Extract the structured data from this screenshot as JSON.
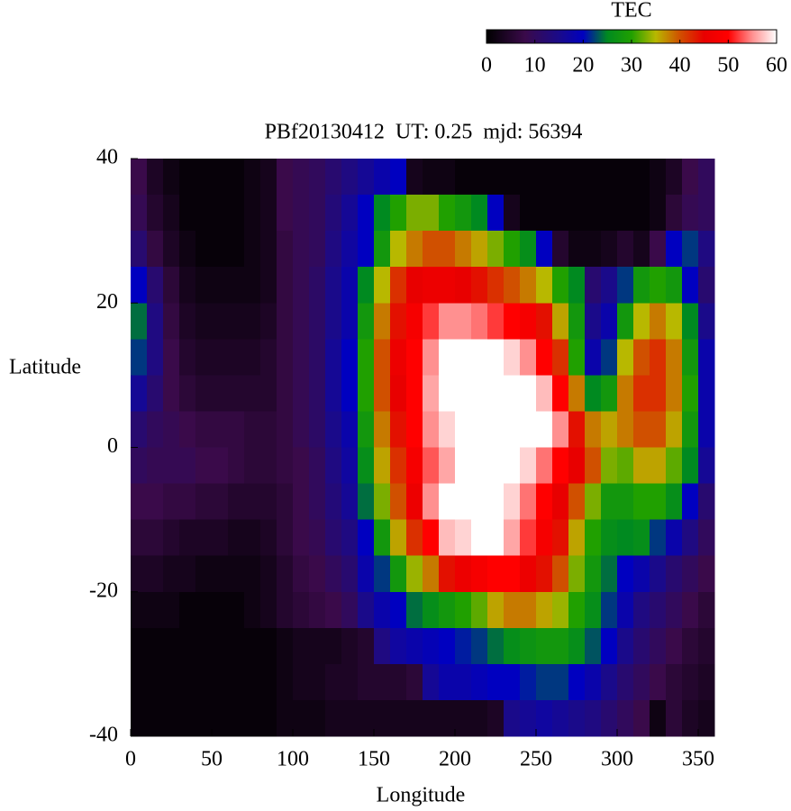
{
  "chart_data": {
    "type": "heatmap",
    "title": "PBf20130412  UT: 0.25  mjd: 56394",
    "x_label": "Longitude",
    "y_label": "Latitude",
    "xlim": [
      0,
      360
    ],
    "ylim": [
      -40,
      40
    ],
    "xticks": [
      0,
      50,
      100,
      150,
      200,
      250,
      300,
      350
    ],
    "yticks": [
      -40,
      -20,
      0,
      20,
      40
    ],
    "colorbar": {
      "label": "TEC",
      "lim": [
        0,
        60
      ],
      "ticks": [
        0,
        10,
        20,
        30,
        40,
        50,
        60
      ]
    },
    "colorscale": [
      [
        0,
        "#000000"
      ],
      [
        8,
        "#3a0a4a"
      ],
      [
        15,
        "#1a0a8a"
      ],
      [
        20,
        "#0000c0"
      ],
      [
        25,
        "#008a20"
      ],
      [
        30,
        "#20a000"
      ],
      [
        35,
        "#b8b800"
      ],
      [
        40,
        "#d05000"
      ],
      [
        45,
        "#e80000"
      ],
      [
        50,
        "#ff0000"
      ],
      [
        55,
        "#ff9090"
      ],
      [
        60,
        "#ffffff"
      ]
    ],
    "x": [
      5,
      15,
      25,
      35,
      45,
      55,
      65,
      75,
      85,
      95,
      105,
      115,
      125,
      135,
      145,
      155,
      165,
      175,
      185,
      195,
      205,
      215,
      225,
      235,
      245,
      255,
      265,
      275,
      285,
      295,
      305,
      315,
      325,
      335,
      345,
      355
    ],
    "y": [
      37.5,
      32.5,
      27.5,
      22.5,
      17.5,
      12.5,
      7.5,
      2.5,
      -2.5,
      -7.5,
      -12.5,
      -17.5,
      -22.5,
      -27.5,
      -32.5,
      -37.5
    ],
    "z": [
      [
        8,
        4,
        2,
        1,
        1,
        1,
        1,
        2,
        3,
        8,
        9,
        10,
        12,
        14,
        16,
        18,
        20,
        3,
        2,
        2,
        1,
        1,
        1,
        1,
        1,
        1,
        1,
        1,
        1,
        1,
        1,
        1,
        2,
        4,
        8,
        10
      ],
      [
        9,
        5,
        3,
        1,
        1,
        1,
        1,
        2,
        3,
        8,
        9,
        10,
        13,
        16,
        20,
        25,
        30,
        33,
        33,
        30,
        28,
        25,
        20,
        3,
        1,
        1,
        1,
        1,
        1,
        1,
        1,
        1,
        2,
        6,
        9,
        10
      ],
      [
        12,
        7,
        4,
        2,
        1,
        1,
        1,
        2,
        3,
        7,
        9,
        10,
        14,
        17,
        20,
        28,
        35,
        38,
        40,
        40,
        38,
        36,
        33,
        30,
        26,
        20,
        5,
        2,
        2,
        3,
        5,
        3,
        8,
        20,
        22,
        14
      ],
      [
        20,
        12,
        6,
        3,
        2,
        2,
        2,
        2,
        3,
        7,
        9,
        11,
        15,
        18,
        25,
        35,
        42,
        45,
        46,
        46,
        45,
        44,
        42,
        40,
        38,
        35,
        30,
        25,
        12,
        15,
        22,
        28,
        30,
        28,
        20,
        12
      ],
      [
        24,
        14,
        7,
        4,
        3,
        3,
        3,
        3,
        4,
        7,
        9,
        11,
        15,
        18,
        28,
        38,
        44,
        48,
        52,
        55,
        55,
        54,
        52,
        50,
        48,
        44,
        36,
        28,
        15,
        18,
        28,
        35,
        38,
        35,
        25,
        15
      ],
      [
        22,
        14,
        8,
        5,
        4,
        4,
        4,
        4,
        5,
        7,
        9,
        11,
        16,
        20,
        30,
        40,
        46,
        50,
        55,
        60,
        60,
        60,
        60,
        58,
        55,
        50,
        42,
        30,
        18,
        22,
        35,
        40,
        42,
        38,
        28,
        18
      ],
      [
        16,
        12,
        8,
        6,
        5,
        5,
        5,
        5,
        5,
        7,
        9,
        11,
        16,
        20,
        30,
        40,
        45,
        50,
        56,
        60,
        60,
        60,
        60,
        60,
        60,
        57,
        50,
        38,
        25,
        28,
        38,
        42,
        42,
        38,
        30,
        18
      ],
      [
        12,
        10,
        9,
        8,
        7,
        7,
        7,
        6,
        6,
        7,
        9,
        11,
        15,
        18,
        28,
        38,
        44,
        50,
        55,
        58,
        60,
        60,
        60,
        60,
        60,
        60,
        55,
        44,
        38,
        36,
        38,
        40,
        40,
        36,
        28,
        18
      ],
      [
        10,
        9,
        9,
        9,
        8,
        8,
        7,
        6,
        6,
        7,
        8,
        10,
        14,
        17,
        26,
        36,
        42,
        48,
        53,
        56,
        60,
        60,
        60,
        60,
        58,
        54,
        50,
        45,
        40,
        33,
        32,
        36,
        36,
        32,
        25,
        16
      ],
      [
        8,
        8,
        7,
        7,
        6,
        6,
        5,
        5,
        5,
        6,
        8,
        10,
        13,
        16,
        24,
        33,
        40,
        46,
        55,
        60,
        60,
        60,
        60,
        58,
        54,
        50,
        45,
        40,
        33,
        28,
        28,
        30,
        30,
        26,
        20,
        12
      ],
      [
        6,
        6,
        5,
        4,
        4,
        4,
        3,
        3,
        4,
        6,
        8,
        9,
        12,
        14,
        20,
        28,
        36,
        42,
        50,
        57,
        58,
        60,
        60,
        56,
        52,
        48,
        44,
        36,
        30,
        26,
        25,
        26,
        22,
        18,
        14,
        10
      ],
      [
        4,
        4,
        3,
        3,
        2,
        2,
        2,
        2,
        3,
        5,
        7,
        8,
        10,
        12,
        18,
        22,
        28,
        34,
        38,
        44,
        46,
        48,
        50,
        50,
        46,
        44,
        40,
        33,
        28,
        24,
        20,
        18,
        15,
        12,
        10,
        8
      ],
      [
        2,
        2,
        2,
        1,
        1,
        1,
        1,
        2,
        3,
        5,
        6,
        7,
        8,
        10,
        15,
        18,
        20,
        24,
        26,
        28,
        30,
        32,
        36,
        38,
        38,
        36,
        34,
        30,
        26,
        22,
        18,
        14,
        12,
        10,
        8,
        6
      ],
      [
        1,
        1,
        1,
        1,
        1,
        1,
        1,
        1,
        1,
        2,
        3,
        3,
        3,
        4,
        5,
        14,
        17,
        18,
        19,
        20,
        21,
        22,
        24,
        26,
        27,
        28,
        28,
        26,
        23,
        20,
        15,
        12,
        10,
        8,
        6,
        5
      ],
      [
        1,
        1,
        1,
        1,
        1,
        1,
        1,
        1,
        1,
        2,
        3,
        3,
        4,
        4,
        5,
        5,
        5,
        6,
        16,
        18,
        18,
        19,
        20,
        20,
        21,
        22,
        22,
        20,
        18,
        15,
        12,
        10,
        8,
        6,
        5,
        4
      ],
      [
        1,
        1,
        1,
        1,
        1,
        1,
        1,
        1,
        1,
        2,
        2,
        2,
        3,
        3,
        3,
        3,
        3,
        3,
        3,
        3,
        3,
        3,
        4,
        15,
        16,
        17,
        16,
        15,
        14,
        12,
        10,
        8,
        2,
        6,
        4,
        3
      ]
    ]
  }
}
